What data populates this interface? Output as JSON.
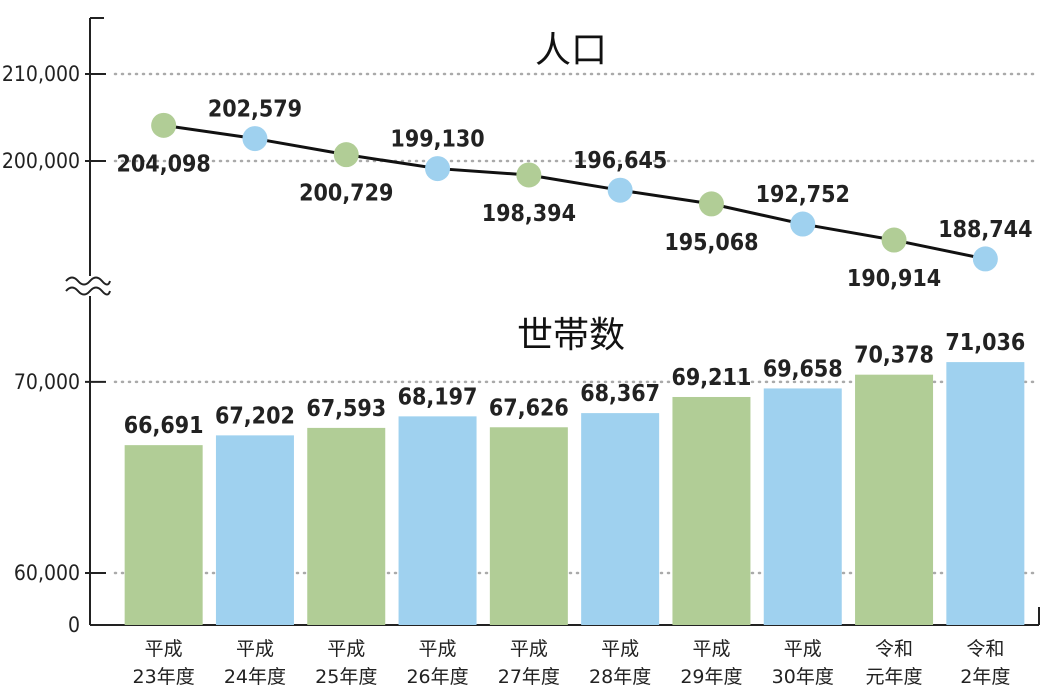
{
  "chart_data": {
    "type": "line+bar",
    "categories": [
      [
        "平成",
        "23年度"
      ],
      [
        "平成",
        "24年度"
      ],
      [
        "平成",
        "25年度"
      ],
      [
        "平成",
        "26年度"
      ],
      [
        "平成",
        "27年度"
      ],
      [
        "平成",
        "28年度"
      ],
      [
        "平成",
        "29年度"
      ],
      [
        "平成",
        "30年度"
      ],
      [
        "令和",
        "元年度"
      ],
      [
        "令和",
        "2年度"
      ]
    ],
    "colors": {
      "green": "#b1cd96",
      "blue": "#9fd1ef",
      "line": "#111111",
      "grid": "#aaaaaa",
      "axis": "#222222"
    },
    "marker_colors": [
      "green",
      "blue",
      "green",
      "blue",
      "green",
      "blue",
      "green",
      "blue",
      "green",
      "blue"
    ],
    "population": {
      "title": "人口",
      "type": "line",
      "values": [
        204098,
        202579,
        200729,
        199130,
        198394,
        196645,
        195068,
        192752,
        190914,
        188744
      ],
      "labels": [
        "204,098",
        "202,579",
        "200,729",
        "199,130",
        "198,394",
        "196,645",
        "195,068",
        "192,752",
        "190,914",
        "188,744"
      ],
      "label_positions": [
        "below",
        "above",
        "below",
        "above",
        "below",
        "above",
        "below",
        "above",
        "below",
        "above"
      ],
      "yticks": [
        200000,
        210000
      ],
      "ytick_labels": [
        "200,000",
        "210,000"
      ],
      "ylim": [
        186000,
        216000
      ],
      "grid": true
    },
    "households": {
      "title": "世帯数",
      "type": "bar",
      "values": [
        66691,
        67202,
        67593,
        68197,
        67626,
        68367,
        69211,
        69658,
        70378,
        71036
      ],
      "labels": [
        "66,691",
        "67,202",
        "67,593",
        "68,197",
        "67,626",
        "68,367",
        "69,211",
        "69,658",
        "70,378",
        "71,036"
      ],
      "yticks": [
        0,
        60000,
        70000
      ],
      "ytick_labels": [
        "0",
        "60,000",
        "70,000"
      ],
      "axis_break": true,
      "grid": true
    }
  }
}
